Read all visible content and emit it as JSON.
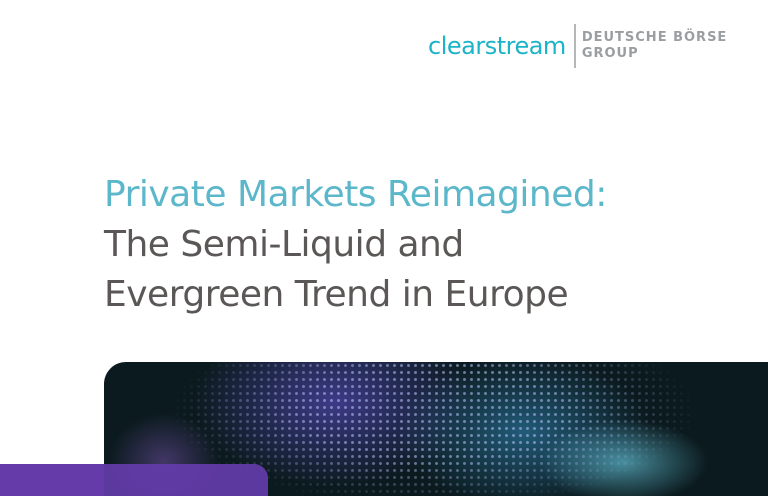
{
  "logo": {
    "brand": "clearstream",
    "group_line1": "DEUTSCHE BÖRSE",
    "group_line2": "GROUP"
  },
  "title": {
    "line1": "Private Markets Reimagined:",
    "line2": "The Semi-Liquid and",
    "line3": "Evergreen Trend in Europe"
  },
  "colors": {
    "brand_teal": "#1ab3c8",
    "title_accent": "#5cb7cb",
    "title_text": "#5b5757",
    "purple": "#663896"
  }
}
